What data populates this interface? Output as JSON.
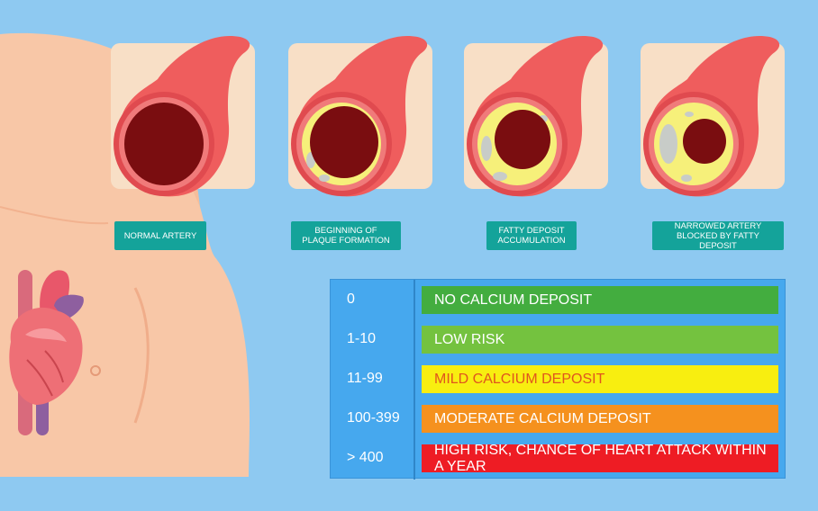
{
  "stages": [
    {
      "label": "NORMAL ARTERY"
    },
    {
      "label": "BEGINNING OF PLAQUE FORMATION"
    },
    {
      "label": "FATTY DEPOSIT ACCUMULATION"
    },
    {
      "label": "NARROWED ARTERY BLOCKED BY FATTY DEPOSIT"
    }
  ],
  "score_table": {
    "rows": [
      {
        "score": "0",
        "risk": "NO CALCIUM DEPOSIT",
        "color": "#43ad3f",
        "text_color": "#ffffff"
      },
      {
        "score": "1-10",
        "risk": "LOW RISK",
        "color": "#74c23f",
        "text_color": "#ffffff"
      },
      {
        "score": "11-99",
        "risk": "MILD CALCIUM DEPOSIT",
        "color": "#f8ee10",
        "text_color": "#e0551d"
      },
      {
        "score": "100-399",
        "risk": "MODERATE CALCIUM DEPOSIT",
        "color": "#f5911e",
        "text_color": "#ffffff"
      },
      {
        "score": "> 400",
        "risk": "HIGH RISK, CHANCE OF HEART ATTACK WITHIN A YEAR",
        "color": "#ee1c24",
        "text_color": "#ffffff"
      }
    ]
  },
  "colors": {
    "background": "#8ec9f1",
    "card": "#f8dfc6",
    "artery": "#ef5d5d",
    "lumen": "#7a0d10",
    "plaque": "#f6f07a",
    "calcium": "#c8ccc8",
    "skin": "#f8c7a7",
    "label_bg": "#14a39a"
  }
}
